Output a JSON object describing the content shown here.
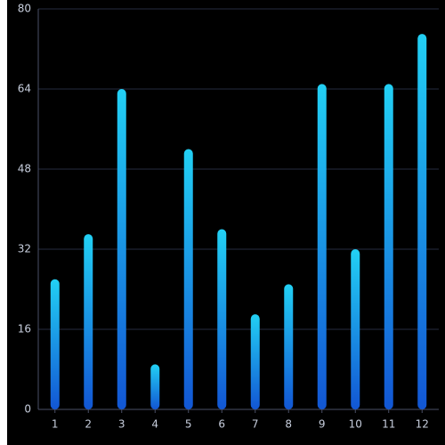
{
  "chart_data": {
    "type": "bar",
    "categories": [
      "1",
      "2",
      "3",
      "4",
      "5",
      "6",
      "7",
      "8",
      "9",
      "10",
      "11",
      "12"
    ],
    "values": [
      26,
      35,
      64,
      9,
      52,
      36,
      19,
      25,
      65,
      32,
      65,
      75
    ],
    "color_top": "#22d0f4",
    "color_bottom": "#1256d4",
    "ylim": [
      0,
      80
    ],
    "yticks": [
      0,
      16,
      32,
      48,
      64,
      80
    ],
    "grid": true
  }
}
